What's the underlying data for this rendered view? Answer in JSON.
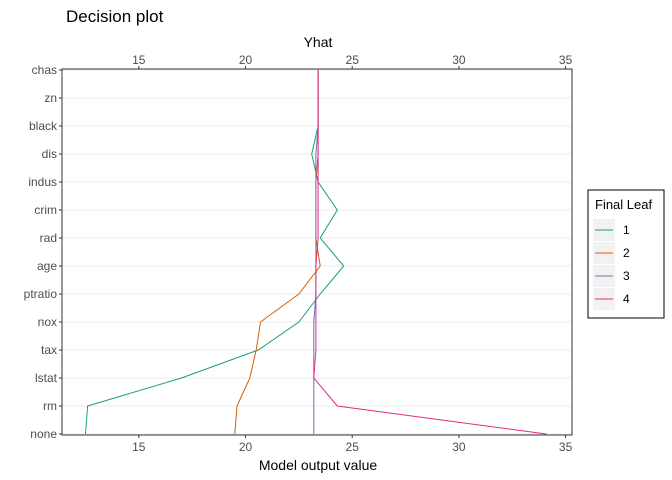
{
  "chart_data": {
    "type": "line",
    "title": "Decision plot",
    "top_axis_label": "Yhat",
    "xlabel": "Model output value",
    "ylabel": "",
    "xlim": [
      11.4,
      35.3
    ],
    "x_ticks": [
      15,
      20,
      25,
      30,
      35
    ],
    "features": [
      "none",
      "rm",
      "lstat",
      "tax",
      "nox",
      "ptratio",
      "age",
      "rad",
      "crim",
      "indus",
      "dis",
      "black",
      "zn",
      "chas"
    ],
    "grid": "horizontal",
    "legend": {
      "title": "Final Leaf",
      "placement": "right"
    },
    "series": [
      {
        "name": "1",
        "color": "#1b9e77",
        "values": [
          12.5,
          12.6,
          17.0,
          20.6,
          22.5,
          23.5,
          24.6,
          23.5,
          24.3,
          23.4,
          23.1,
          23.4,
          23.4,
          23.4
        ]
      },
      {
        "name": "2",
        "color": "#d95f02",
        "values": [
          19.5,
          19.6,
          20.2,
          20.5,
          20.7,
          22.5,
          23.5,
          23.3,
          23.3,
          23.3,
          23.4,
          23.4,
          23.4,
          23.4
        ]
      },
      {
        "name": "3",
        "color": "#7570b3",
        "values": [
          23.2,
          23.2,
          23.2,
          23.2,
          23.2,
          23.3,
          23.3,
          23.3,
          23.3,
          23.3,
          23.3,
          23.4,
          23.4,
          23.4
        ]
      },
      {
        "name": "4",
        "color": "#e7298a",
        "values": [
          34.1,
          24.3,
          23.2,
          23.3,
          23.3,
          23.3,
          23.3,
          23.4,
          23.4,
          23.4,
          23.4,
          23.4,
          23.4,
          23.4
        ]
      }
    ]
  }
}
